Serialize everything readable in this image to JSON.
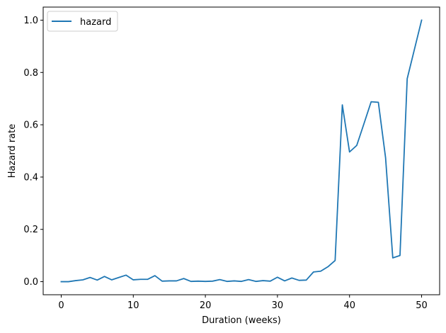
{
  "chart_data": {
    "type": "line",
    "title": "",
    "xlabel": "Duration (weeks)",
    "ylabel": "Hazard rate",
    "xlim": [
      -2.5,
      52.5
    ],
    "ylim": [
      -0.05,
      1.05
    ],
    "xticks": [
      0,
      10,
      20,
      30,
      40,
      50
    ],
    "yticks": [
      0.0,
      0.2,
      0.4,
      0.6,
      0.8,
      1.0
    ],
    "xtick_labels": [
      "0",
      "10",
      "20",
      "30",
      "40",
      "50"
    ],
    "ytick_labels": [
      "0.0",
      "0.2",
      "0.4",
      "0.6",
      "0.8",
      "1.0"
    ],
    "grid": false,
    "legend": {
      "position": "top-left"
    },
    "series": [
      {
        "name": "hazard",
        "color": "#1f77b4",
        "x": [
          0,
          1,
          2,
          3,
          4,
          5,
          6,
          7,
          8,
          9,
          10,
          11,
          12,
          13,
          14,
          15,
          16,
          17,
          18,
          19,
          20,
          21,
          22,
          23,
          24,
          25,
          26,
          27,
          28,
          29,
          30,
          31,
          32,
          33,
          34,
          35,
          36,
          37,
          38,
          39,
          40,
          41,
          42,
          43,
          44,
          45,
          46,
          47,
          48,
          49,
          50
        ],
        "y": [
          0.0,
          0.0,
          0.004,
          0.007,
          0.016,
          0.006,
          0.02,
          0.007,
          0.016,
          0.025,
          0.007,
          0.009,
          0.009,
          0.023,
          0.002,
          0.003,
          0.003,
          0.012,
          0.001,
          0.002,
          0.001,
          0.002,
          0.008,
          0.001,
          0.003,
          0.001,
          0.008,
          0.001,
          0.004,
          0.002,
          0.017,
          0.003,
          0.014,
          0.005,
          0.006,
          0.037,
          0.04,
          0.057,
          0.081,
          0.676,
          0.496,
          0.521,
          0.604,
          0.688,
          0.686,
          0.474,
          0.091,
          0.1,
          0.776,
          0.888,
          1.0
        ]
      }
    ]
  }
}
